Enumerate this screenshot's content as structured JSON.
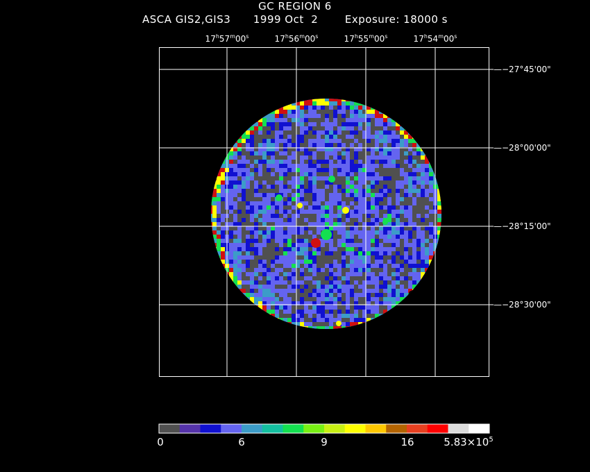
{
  "header": {
    "title": "GC REGION 6",
    "instrument": "ASCA GIS2,GIS3",
    "date": "1999 Oct  2",
    "exposure": "Exposure: 18000 s"
  },
  "ra_axis": [
    {
      "h": "17",
      "m": "57",
      "s": "00"
    },
    {
      "h": "17",
      "m": "56",
      "s": "00"
    },
    {
      "h": "17",
      "m": "55",
      "s": "00"
    },
    {
      "h": "17",
      "m": "54",
      "s": "00"
    }
  ],
  "dec_axis": [
    {
      "d": "−27",
      "m": "45",
      "s": "00"
    },
    {
      "d": "−28",
      "m": "00",
      "s": "00"
    },
    {
      "d": "−28",
      "m": "15",
      "s": "00"
    },
    {
      "d": "−28",
      "m": "30",
      "s": "00"
    }
  ],
  "colorbar": {
    "colors": [
      "#505050",
      "#5533aa",
      "#1010d0",
      "#6464f0",
      "#3c9cc8",
      "#14c0a0",
      "#14e050",
      "#78f014",
      "#c8f014",
      "#ffff00",
      "#ffc800",
      "#b46400",
      "#e84020",
      "#ff0000",
      "#dcdcdc",
      "#ffffff"
    ],
    "labels": [
      {
        "text": "0"
      },
      {
        "text": "6"
      },
      {
        "text": "9"
      },
      {
        "text": "16"
      },
      {
        "text": "5.83×10",
        "sup": "5"
      }
    ]
  },
  "image": {
    "palette": {
      "background": "#505050",
      "low": "#6464f0",
      "mid": "#1010d0",
      "cyan": "#3c9cc8",
      "green": "#14e050",
      "yellow": "#ffff00",
      "red": "#d01010"
    }
  }
}
